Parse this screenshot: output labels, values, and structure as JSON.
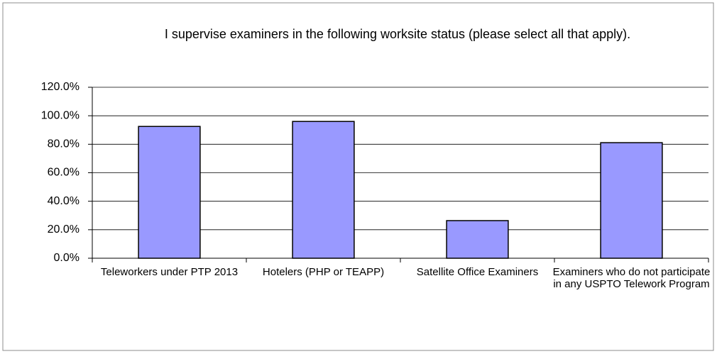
{
  "chart_data": {
    "type": "bar",
    "title": "I supervise examiners in the following worksite status (please select all that apply).",
    "categories": [
      "Teleworkers under PTP 2013",
      "Hotelers (PHP or TEAPP)",
      "Satellite Office Examiners",
      "Examiners who do not participate in any USPTO Telework Program"
    ],
    "values": [
      92.5,
      96.0,
      26.4,
      81.1
    ],
    "color": "#9999ff",
    "ylim": [
      0,
      120
    ],
    "yticks": [
      {
        "value": 0,
        "label": "0.0%"
      },
      {
        "value": 20,
        "label": "20.0%"
      },
      {
        "value": 40,
        "label": "40.0%"
      },
      {
        "value": 60,
        "label": "60.0%"
      },
      {
        "value": 80,
        "label": "80.0%"
      },
      {
        "value": 100,
        "label": "100.0%"
      },
      {
        "value": 120,
        "label": "120.0%"
      }
    ],
    "grid": true
  }
}
